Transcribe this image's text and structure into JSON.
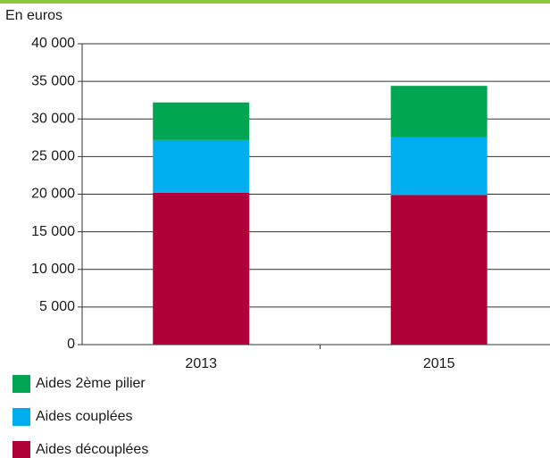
{
  "chart_data": {
    "type": "stacked-bar",
    "y_axis_label": "En euros",
    "categories": [
      "2013",
      "2015"
    ],
    "series": [
      {
        "name": "Aides découplées",
        "color": "#b0003a",
        "values": [
          20200,
          19900
        ]
      },
      {
        "name": "Aides couplées",
        "color": "#00aeef",
        "values": [
          7000,
          7700
        ]
      },
      {
        "name": "Aides 2ème pilier",
        "color": "#00a651",
        "values": [
          5000,
          6800
        ]
      }
    ],
    "ylim": [
      0,
      40000
    ],
    "yticks": [
      0,
      {
        "value": 5000,
        "label": "5 000"
      },
      {
        "value": 10000,
        "label": "10 000"
      },
      {
        "value": 15000,
        "label": "15 000"
      },
      {
        "value": 20000,
        "label": "20 000"
      },
      {
        "value": 25000,
        "label": "25 000"
      },
      {
        "value": 30000,
        "label": "30 000"
      },
      {
        "value": 35000,
        "label": "35 000"
      },
      {
        "value": 40000,
        "label": "40 000"
      }
    ],
    "grid": true
  }
}
